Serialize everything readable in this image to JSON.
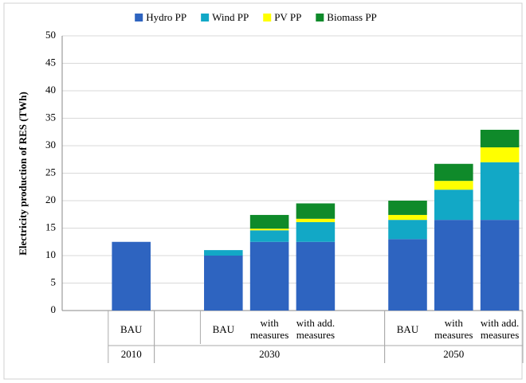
{
  "chart_data": {
    "type": "stacked_bar",
    "y_label": "Electricity production of RES (TWh)",
    "categories": [
      null,
      "BAU",
      null,
      "BAU",
      "with measures",
      "with add. measures",
      null,
      "BAU",
      "with measures",
      "with add. measures"
    ],
    "groups": [
      {
        "label": "2010",
        "start": 1,
        "end": 1
      },
      {
        "label": "2030",
        "start": 2,
        "end": 6
      },
      {
        "label": "2050",
        "start": 7,
        "end": 9
      }
    ],
    "series": [
      {
        "name": "Hydro PP",
        "color": "#2e64c0",
        "values": [
          null,
          12.5,
          null,
          10,
          12.5,
          12.5,
          null,
          13,
          16.5,
          16.5
        ]
      },
      {
        "name": "Wind PP",
        "color": "#12a8c6",
        "values": [
          null,
          0,
          null,
          1,
          2.1,
          3.6,
          null,
          3.5,
          5.5,
          10.5
        ]
      },
      {
        "name": "PV PP",
        "color": "#ffff00",
        "values": [
          null,
          0,
          null,
          0,
          0.3,
          0.6,
          null,
          0.9,
          1.6,
          2.7
        ]
      },
      {
        "name": "Biomass PP",
        "color": "#0f8a2a",
        "values": [
          null,
          0,
          null,
          0,
          2.5,
          2.8,
          null,
          2.6,
          3.1,
          3.2
        ]
      }
    ],
    "ylim": [
      0,
      50
    ],
    "yticks": [
      0,
      5,
      10,
      15,
      20,
      25,
      30,
      35,
      40,
      45,
      50
    ],
    "grid": true,
    "legend": "top"
  }
}
